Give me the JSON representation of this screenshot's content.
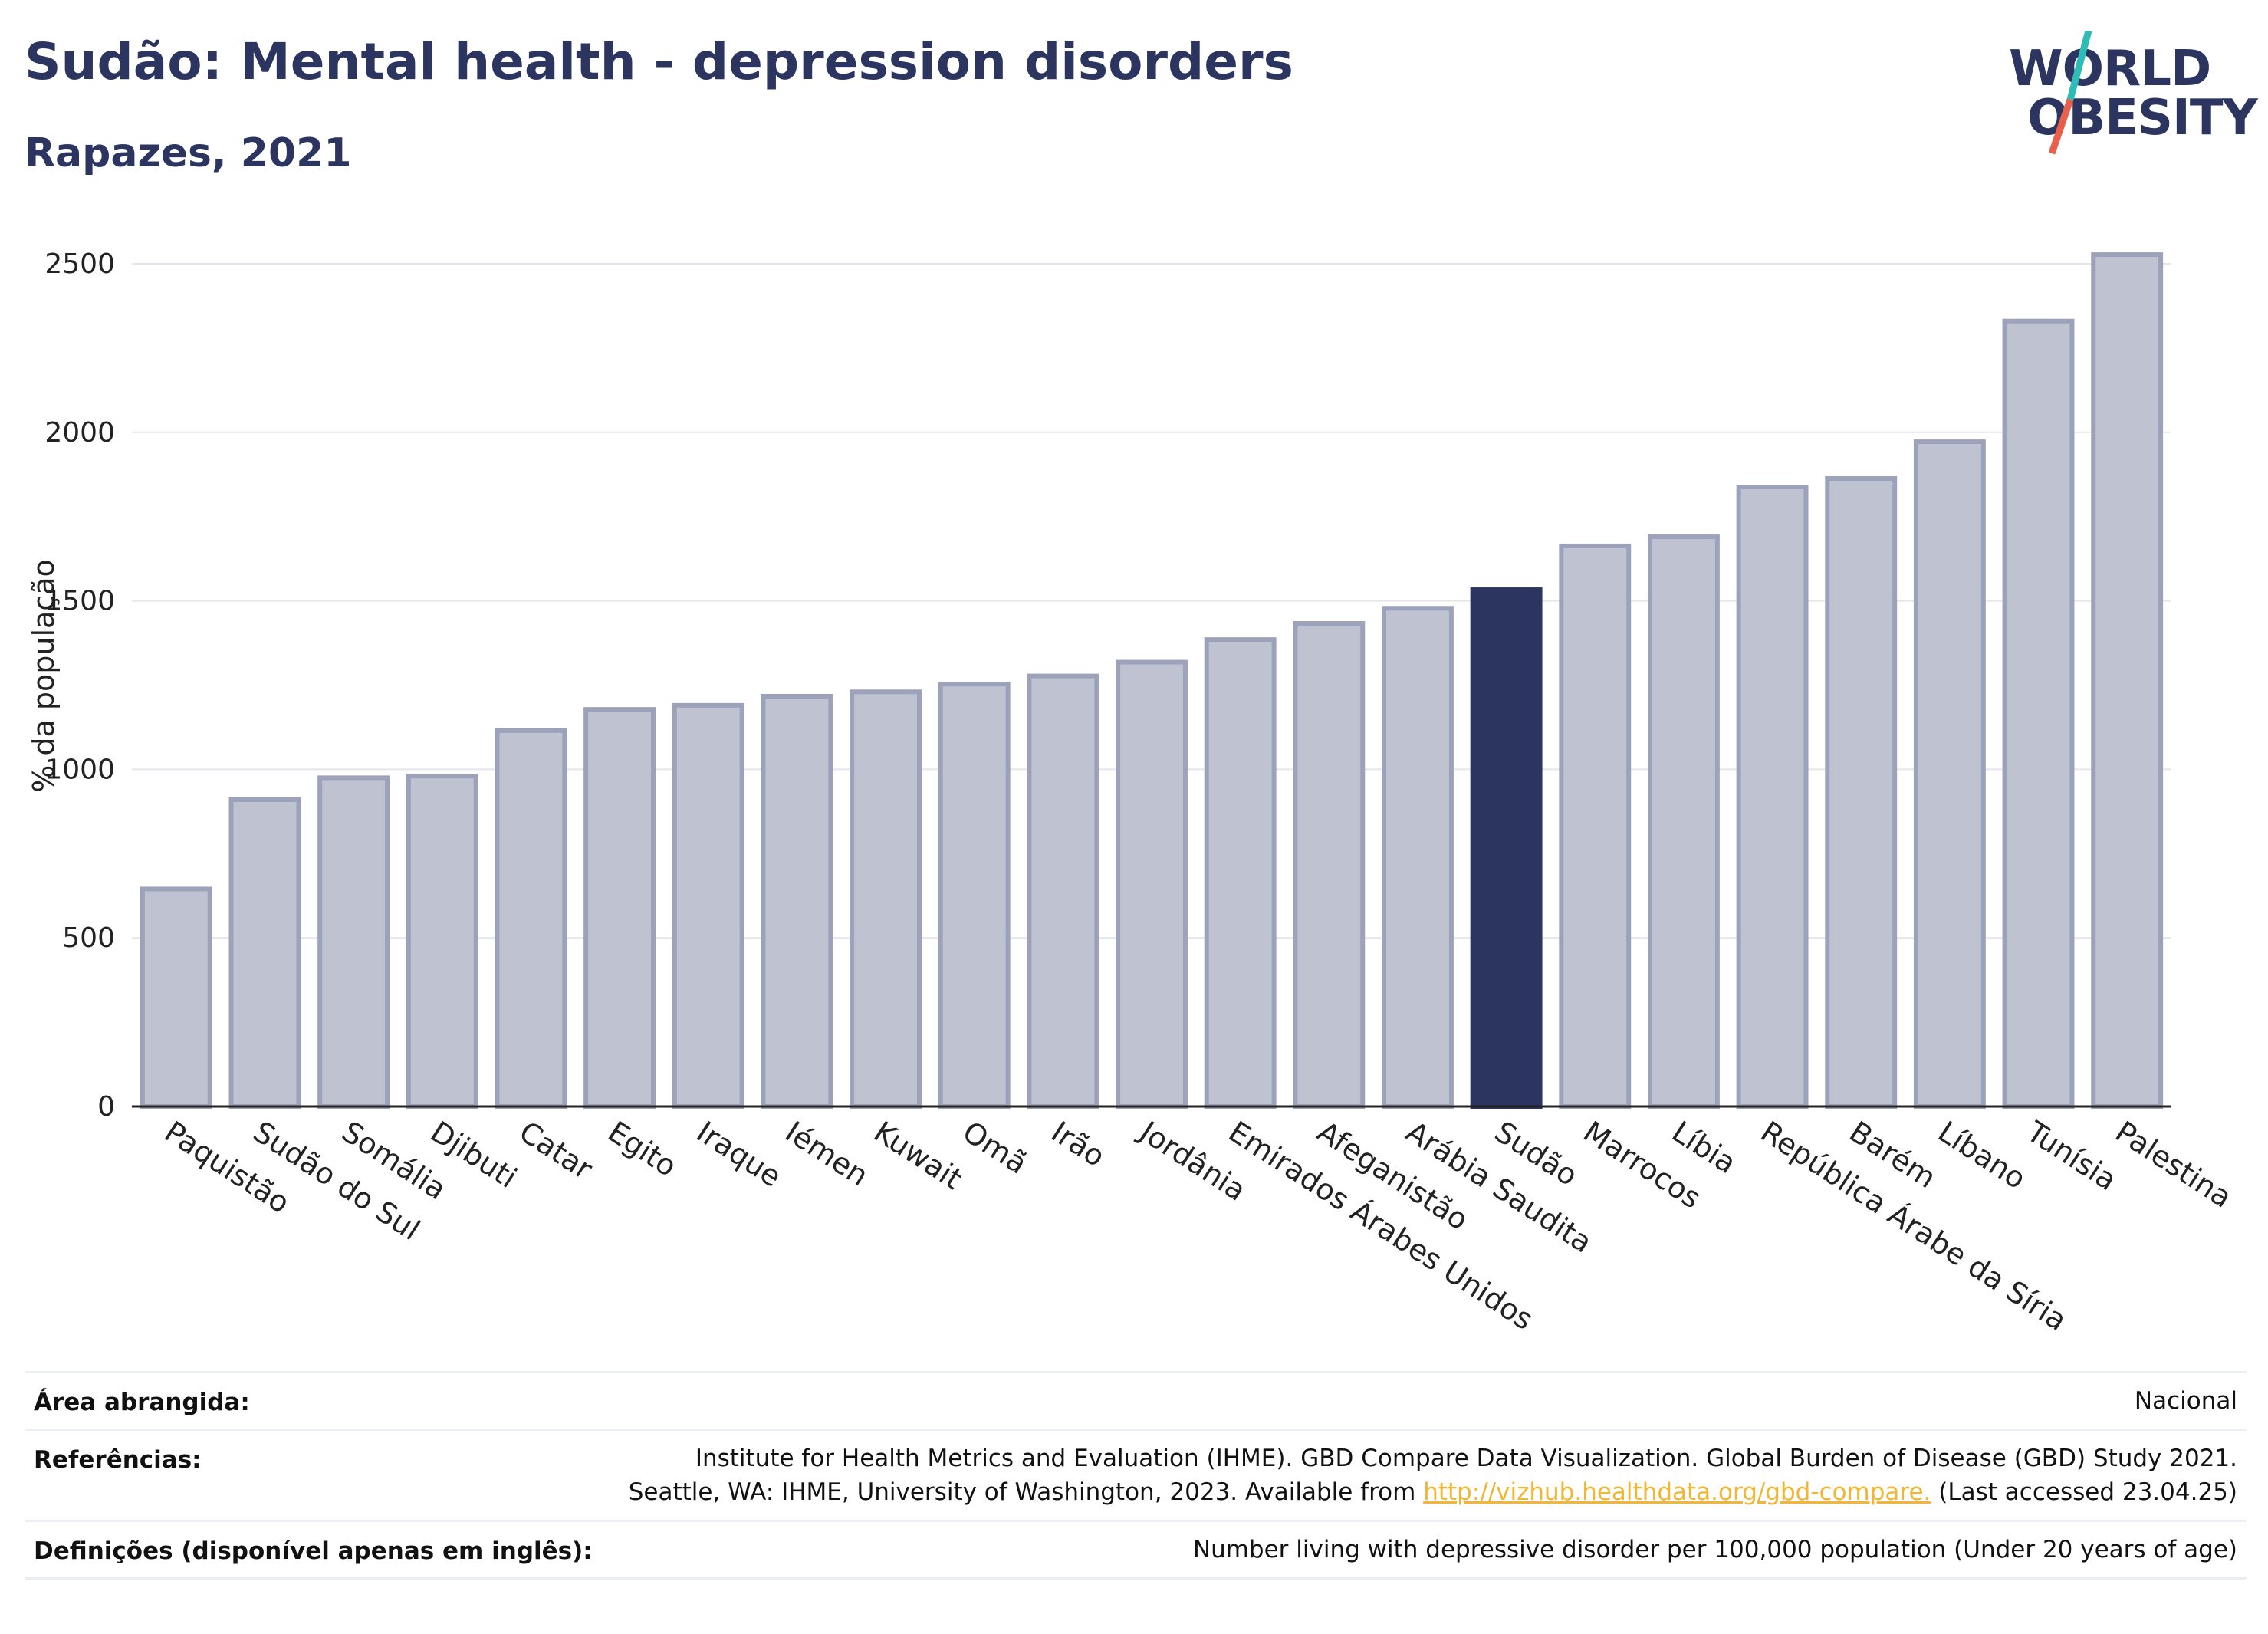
{
  "header": {
    "title": "Sudão: Mental health - depression disorders",
    "subtitle": "Rapazes, 2021"
  },
  "logo": {
    "line1": "WORLD",
    "line2": "OBESITY",
    "accent_colors": [
      "#2dbdb6",
      "#e8604c"
    ]
  },
  "chart_data": {
    "type": "bar",
    "ylabel": "% da população",
    "ylim": [
      0,
      2600
    ],
    "yticks": [
      0,
      500,
      1000,
      1500,
      2000,
      2500
    ],
    "grid": true,
    "categories": [
      "Paquistão",
      "Sudão do Sul",
      "Somália",
      "Djibuti",
      "Catar",
      "Egito",
      "Iraque",
      "Iémen",
      "Kuwait",
      "Omã",
      "Irão",
      "Jordânia",
      "Emirados Árabes Unidos",
      "Afeganistão",
      "Arábia Saudita",
      "Sudão",
      "Marrocos",
      "Líbia",
      "República Árabe da Síria",
      "Barém",
      "Líbano",
      "Tunísia",
      "Palestina"
    ],
    "values": [
      645,
      910,
      975,
      980,
      1115,
      1178,
      1190,
      1217,
      1230,
      1253,
      1277,
      1318,
      1385,
      1433,
      1478,
      1533,
      1663,
      1690,
      1838,
      1863,
      1972,
      2330,
      2527
    ],
    "highlight": "Sudão",
    "colors": {
      "bar": "#bfc2d0",
      "bar_edge": "#9da2bb",
      "highlight": "#2b3560"
    }
  },
  "footer": {
    "area_label": "Área abrangida:",
    "area_value": "Nacional",
    "ref_label": "Referências:",
    "ref_line1": "Institute for Health Metrics and Evaluation (IHME). GBD Compare Data Visualization. Global Burden of Disease (GBD) Study 2021.",
    "ref_line2_pre": "Seattle, WA: IHME, University of Washington, 2023. Available from ",
    "ref_link": "http://vizhub.healthdata.org/gbd-compare.",
    "ref_line2_post": " (Last accessed 23.04.25)",
    "def_label": "Definições (disponível apenas em inglês):",
    "def_value": "Number living with depressive disorder per 100,000 population (Under 20 years of age)"
  }
}
